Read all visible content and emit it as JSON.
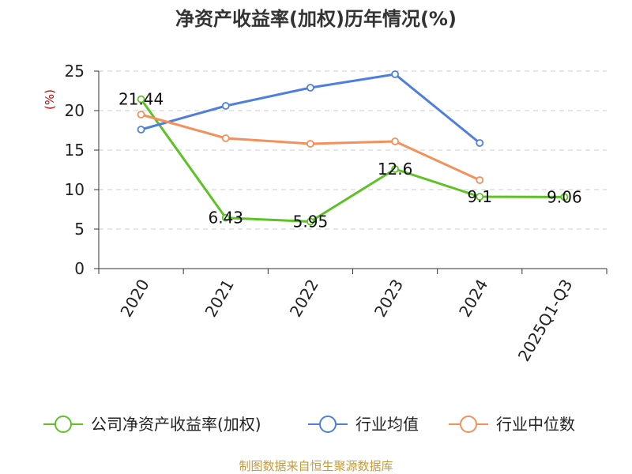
{
  "source_text": "制图数据来自恒生聚源数据库",
  "colors": {
    "company": "#5ec227",
    "industry_avg": "#4f7fdc",
    "industry_median": "#f3905c",
    "unit": "#cc0000",
    "source": "#c79a3a",
    "grid": "#cccccc",
    "axis": "#333333"
  },
  "chart_data": {
    "type": "line",
    "title": "净资产收益率(加权)历年情况(%)",
    "ylabel": "(%)",
    "xlabel": "",
    "categories": [
      "2020",
      "2021",
      "2022",
      "2023",
      "2024",
      "2025Q1-Q3"
    ],
    "ylim": [
      0,
      25
    ],
    "yticks": [
      0,
      5,
      10,
      15,
      20,
      25
    ],
    "grid": true,
    "legend_position": "bottom",
    "series": [
      {
        "name": "公司净资产收益率(加权)",
        "key": "company",
        "values": [
          21.44,
          6.43,
          5.95,
          12.6,
          9.1,
          9.06
        ],
        "labels": [
          "21.44",
          "6.43",
          "5.95",
          "12.6",
          "9.1",
          "9.06"
        ]
      },
      {
        "name": "行业均值",
        "key": "industry_avg",
        "values": [
          17.6,
          20.6,
          22.9,
          24.6,
          15.9,
          null
        ]
      },
      {
        "name": "行业中位数",
        "key": "industry_median",
        "values": [
          19.5,
          16.5,
          15.8,
          16.1,
          11.2,
          null
        ]
      }
    ]
  }
}
